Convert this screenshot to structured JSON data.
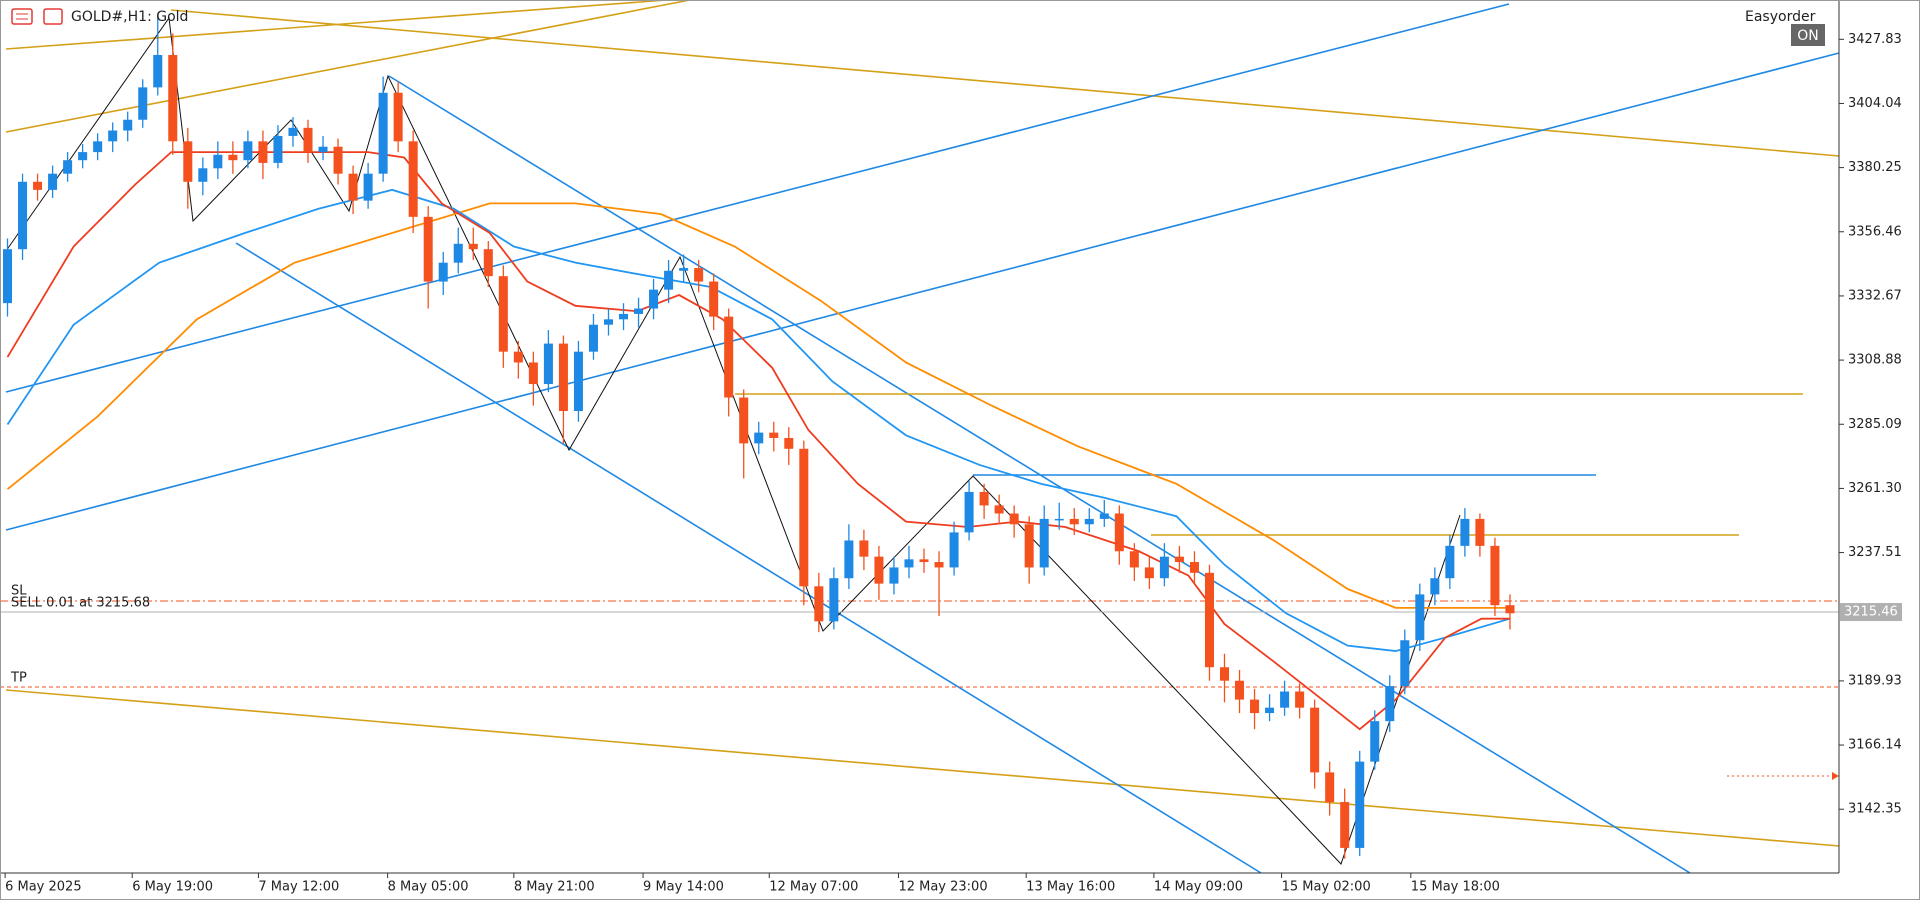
{
  "chart_data": {
    "type": "candlestick",
    "title": "GOLD#,H1: Gold",
    "panel_label": "Easyorder",
    "toggle": "ON",
    "bull_color": "#1e88e5",
    "bear_color": "#f4511e",
    "xlim": [
      -0.5,
      121.9
    ],
    "ylim": [
      3118.7,
      3442.4
    ],
    "yticks": [
      3427.83,
      3404.04,
      3380.25,
      3356.46,
      3332.67,
      3308.88,
      3285.09,
      {
        "value": 3261.3,
        "label": "3261.30"
      },
      3237.51,
      3189.93,
      3166.14,
      3142.35
    ],
    "xticks": [
      {
        "value": -0.16,
        "label": "6 May 2025"
      },
      {
        "value": 8.3,
        "label": "6 May 19:00"
      },
      {
        "value": 16.7,
        "label": "7 May 12:00"
      },
      {
        "value": 25.3,
        "label": "8 May 05:00"
      },
      {
        "value": 33.7,
        "label": "8 May 21:00"
      },
      {
        "value": 42.3,
        "label": "9 May 14:00"
      },
      {
        "value": 50.7,
        "label": "12 May 07:00"
      },
      {
        "value": 59.3,
        "label": "12 May 23:00"
      },
      {
        "value": 67.8,
        "label": "13 May 16:00"
      },
      {
        "value": 76.3,
        "label": "14 May 09:00"
      },
      {
        "value": 84.8,
        "label": "15 May 02:00"
      },
      {
        "value": 93.4,
        "label": "15 May 18:00"
      }
    ],
    "current_price": 3215.46,
    "annotations": [
      "SL",
      "SELL 0.01 at 3215.68",
      "TP"
    ],
    "candles": [
      [
        3330,
        3354,
        3325,
        3350
      ],
      [
        3350,
        3378,
        3346,
        3375
      ],
      [
        3375,
        3378,
        3368,
        3372
      ],
      [
        3372,
        3381,
        3369,
        3378
      ],
      [
        3378,
        3386,
        3375,
        3383
      ],
      [
        3383,
        3389,
        3380,
        3386
      ],
      [
        3386,
        3393,
        3383,
        3390
      ],
      [
        3390,
        3397,
        3386,
        3394
      ],
      [
        3394,
        3401,
        3390,
        3398
      ],
      [
        3398,
        3413,
        3395,
        3410
      ],
      [
        3410,
        3437,
        3407,
        3422
      ],
      [
        3422,
        3430,
        3385,
        3390
      ],
      [
        3390,
        3395,
        3365,
        3375
      ],
      [
        3375,
        3384,
        3370,
        3380
      ],
      [
        3380,
        3390,
        3376,
        3385
      ],
      [
        3385,
        3390,
        3378,
        3383
      ],
      [
        3383,
        3394,
        3380,
        3390
      ],
      [
        3390,
        3394,
        3376,
        3382
      ],
      [
        3382,
        3396,
        3380,
        3392
      ],
      [
        3392,
        3399,
        3388,
        3395
      ],
      [
        3395,
        3398,
        3382,
        3386
      ],
      [
        3386,
        3392,
        3383,
        3388
      ],
      [
        3388,
        3391,
        3374,
        3378
      ],
      [
        3378,
        3381,
        3363,
        3368
      ],
      [
        3368,
        3382,
        3365,
        3378
      ],
      [
        3378,
        3414,
        3375,
        3408
      ],
      [
        3408,
        3412,
        3386,
        3390
      ],
      [
        3390,
        3394,
        3356,
        3362
      ],
      [
        3362,
        3366,
        3328,
        3338
      ],
      [
        3338,
        3349,
        3333,
        3345
      ],
      [
        3345,
        3358,
        3341,
        3352
      ],
      [
        3352,
        3358,
        3346,
        3350
      ],
      [
        3350,
        3353,
        3336,
        3340
      ],
      [
        3340,
        3344,
        3306,
        3312
      ],
      [
        3312,
        3316,
        3302,
        3308
      ],
      [
        3308,
        3312,
        3292,
        3300
      ],
      [
        3300,
        3320,
        3297,
        3315
      ],
      [
        3315,
        3318,
        3278,
        3290
      ],
      [
        3290,
        3316,
        3286,
        3312
      ],
      [
        3312,
        3326,
        3309,
        3322
      ],
      [
        3322,
        3328,
        3318,
        3324
      ],
      [
        3324,
        3330,
        3320,
        3326
      ],
      [
        3326,
        3332,
        3321,
        3328
      ],
      [
        3328,
        3339,
        3324,
        3335
      ],
      [
        3335,
        3346,
        3330,
        3342
      ],
      [
        3342,
        3348,
        3338,
        3343
      ],
      [
        3343,
        3346,
        3334,
        3338
      ],
      [
        3338,
        3341,
        3320,
        3325
      ],
      [
        3325,
        3328,
        3288,
        3295
      ],
      [
        3295,
        3298,
        3265,
        3278
      ],
      [
        3278,
        3286,
        3274,
        3282
      ],
      [
        3282,
        3286,
        3275,
        3280
      ],
      [
        3280,
        3284,
        3270,
        3276
      ],
      [
        3276,
        3279,
        3218,
        3225
      ],
      [
        3225,
        3230,
        3208,
        3212
      ],
      [
        3212,
        3232,
        3209,
        3228
      ],
      [
        3228,
        3248,
        3224,
        3242
      ],
      [
        3242,
        3246,
        3231,
        3236
      ],
      [
        3236,
        3240,
        3220,
        3226
      ],
      [
        3226,
        3236,
        3222,
        3232
      ],
      [
        3232,
        3240,
        3228,
        3235
      ],
      [
        3235,
        3239,
        3230,
        3234
      ],
      [
        3234,
        3238,
        3214,
        3232
      ],
      [
        3232,
        3249,
        3229,
        3245
      ],
      [
        3245,
        3264,
        3242,
        3260
      ],
      [
        3260,
        3263,
        3250,
        3255
      ],
      [
        3255,
        3259,
        3248,
        3252
      ],
      [
        3252,
        3255,
        3243,
        3248
      ],
      [
        3248,
        3251,
        3226,
        3232
      ],
      [
        3232,
        3255,
        3229,
        3250
      ],
      [
        3250,
        3256,
        3246,
        3250
      ],
      [
        3250,
        3254,
        3244,
        3248
      ],
      [
        3248,
        3254,
        3245,
        3250
      ],
      [
        3250,
        3257,
        3247,
        3252
      ],
      [
        3252,
        3255,
        3233,
        3238
      ],
      [
        3238,
        3241,
        3227,
        3232
      ],
      [
        3232,
        3236,
        3224,
        3228
      ],
      [
        3228,
        3241,
        3225,
        3236
      ],
      [
        3236,
        3240,
        3230,
        3234
      ],
      [
        3234,
        3238,
        3226,
        3230
      ],
      [
        3230,
        3233,
        3190,
        3195
      ],
      [
        3195,
        3200,
        3182,
        3190
      ],
      [
        3190,
        3194,
        3178,
        3183
      ],
      [
        3183,
        3187,
        3172,
        3178
      ],
      [
        3178,
        3185,
        3175,
        3180
      ],
      [
        3180,
        3190,
        3177,
        3186
      ],
      [
        3186,
        3189,
        3176,
        3180
      ],
      [
        3180,
        3183,
        3150,
        3156
      ],
      [
        3156,
        3160,
        3140,
        3145
      ],
      [
        3145,
        3150,
        3124,
        3128
      ],
      [
        3128,
        3164,
        3125,
        3160
      ],
      [
        3160,
        3179,
        3157,
        3175
      ],
      [
        3175,
        3192,
        3171,
        3188
      ],
      [
        3188,
        3209,
        3185,
        3205
      ],
      [
        3205,
        3226,
        3201,
        3222
      ],
      [
        3222,
        3232,
        3218,
        3228
      ],
      [
        3228,
        3244,
        3224,
        3240
      ],
      [
        3240,
        3254,
        3236,
        3250
      ],
      [
        3250,
        3252,
        3236,
        3240
      ],
      [
        3240,
        3243,
        3214,
        3218
      ],
      [
        3218,
        3222,
        3209,
        3215
      ]
    ],
    "indicators": [
      {
        "color": "#ff8c00",
        "x": [
          0,
          6,
          12.6,
          19.1,
          25.6,
          32.1,
          37.8,
          43.5,
          48.4,
          54.1,
          59.8,
          65.5,
          71.2,
          77.8,
          84.3,
          89.2,
          92.4,
          100
        ],
        "values": [
          3261,
          3288,
          3324,
          3345,
          3356,
          3367,
          3367,
          3363,
          3351,
          3331,
          3308,
          3292,
          3277,
          3263,
          3242,
          3224,
          3217,
          3217
        ]
      },
      {
        "color": "#2196f3",
        "x": [
          0,
          4.4,
          10.1,
          15.8,
          20.7,
          25.6,
          29.7,
          33.7,
          37.8,
          42.7,
          46.8,
          50.9,
          54.9,
          59.8,
          64.7,
          68.8,
          72.9,
          77.8,
          81,
          85.1,
          89.2,
          92.4,
          95.7,
          100
        ],
        "values": [
          3285,
          3322,
          3345,
          3356,
          3365,
          3372,
          3365,
          3351,
          3345,
          3340,
          3336,
          3324,
          3301,
          3281,
          3270,
          3263,
          3258,
          3251,
          3233,
          3215,
          3203,
          3201,
          3206,
          3213
        ]
      },
      {
        "color": "#f03c1e",
        "x": [
          0,
          4.4,
          8.5,
          10.9,
          15.8,
          19.9,
          24,
          26.4,
          28.9,
          32.1,
          34.6,
          37.8,
          41.9,
          44.7,
          47.6,
          50.9,
          53.3,
          56.6,
          59.8,
          63.9,
          67.2,
          70.4,
          75.3,
          78.6,
          81,
          84.3,
          87.5,
          90,
          92.4,
          95.7,
          98.1,
          100
        ],
        "values": [
          3310,
          3351,
          3374,
          3386,
          3386,
          3386,
          3386,
          3384,
          3367,
          3356,
          3338,
          3329,
          3327,
          3333,
          3324,
          3306,
          3283,
          3263,
          3249,
          3247,
          3249,
          3247,
          3238,
          3229,
          3211,
          3197,
          3183,
          3172,
          3183,
          3206,
          3213,
          3213
        ]
      }
    ]
  }
}
